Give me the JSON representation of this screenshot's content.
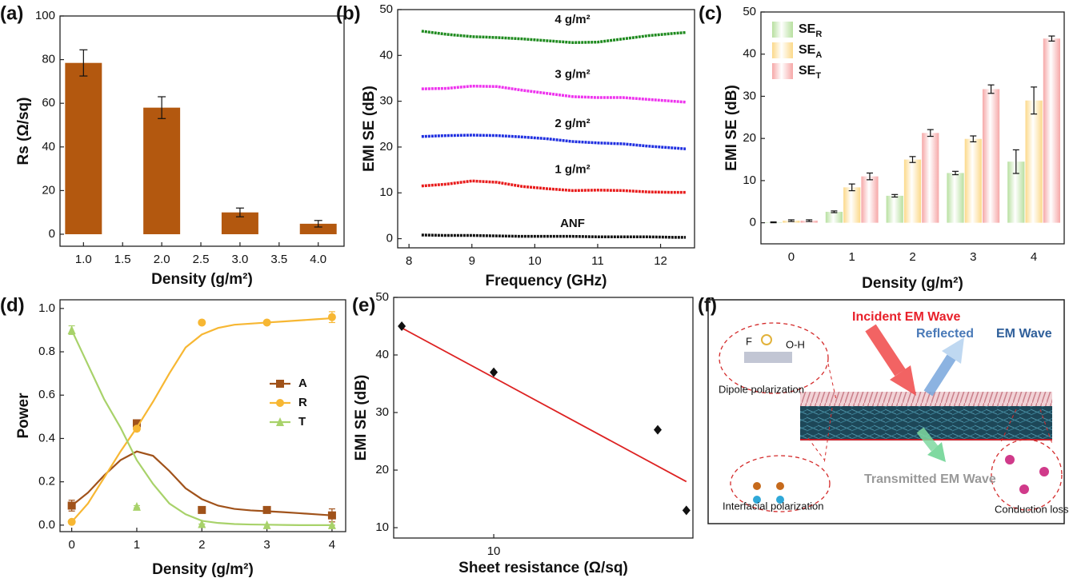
{
  "chart_data": [
    {
      "type": "bar",
      "label": "(a)",
      "ylabel": "Rs (Ω/sq)",
      "xlabel": "Density (g/m²)",
      "x": [
        1,
        2,
        3,
        4
      ],
      "values": [
        78.5,
        58,
        10,
        4.8
      ],
      "errors": [
        6,
        5,
        2,
        1.5
      ],
      "color": "#b3580f",
      "xlim": [
        0.7,
        4.33
      ],
      "xticks": [
        {
          "value": 1,
          "label": "1.0"
        },
        1.5,
        {
          "value": 2,
          "label": "2.0"
        },
        2.5,
        {
          "value": 3,
          "label": "3.0"
        },
        3.5,
        {
          "value": 4,
          "label": "4.0"
        }
      ],
      "ylim": [
        -5.5,
        100
      ],
      "yticks": [
        0,
        20,
        40,
        60,
        80,
        100
      ]
    },
    {
      "type": "line",
      "label": "(b)",
      "ylabel": "EMI SE (dB)",
      "xlabel": "Frequency (GHz)",
      "x": [
        8.2,
        8.6,
        9.0,
        9.4,
        9.8,
        10.2,
        10.6,
        11.0,
        11.4,
        11.8,
        12.2,
        12.4
      ],
      "series": [
        {
          "name": "4 g/m²",
          "color": "#1e8a1e",
          "values": [
            45.3,
            44.6,
            44.1,
            43.9,
            43.6,
            43.2,
            42.8,
            42.9,
            43.6,
            44.3,
            44.8,
            45.0
          ]
        },
        {
          "name": "3 g/m²",
          "color": "#ee33ee",
          "values": [
            32.7,
            32.8,
            33.3,
            33.2,
            32.4,
            31.7,
            31.0,
            30.8,
            30.8,
            30.4,
            30.0,
            29.8
          ]
        },
        {
          "name": "2 g/m²",
          "color": "#1f2fe0",
          "values": [
            22.3,
            22.5,
            22.6,
            22.5,
            22.2,
            21.8,
            21.2,
            20.9,
            20.7,
            20.2,
            19.8,
            19.6
          ]
        },
        {
          "name": "1 g/m²",
          "color": "#e81c1c",
          "values": [
            11.5,
            11.9,
            12.6,
            12.3,
            11.4,
            10.9,
            10.5,
            10.6,
            10.5,
            10.2,
            10.1,
            10.1
          ]
        },
        {
          "name": "ANF",
          "color": "#111111",
          "values": [
            0.8,
            0.7,
            0.7,
            0.6,
            0.5,
            0.5,
            0.5,
            0.4,
            0.4,
            0.4,
            0.3,
            0.3
          ]
        }
      ],
      "xlim": [
        7.82,
        12.54
      ],
      "xticks": [
        8,
        9,
        10,
        11,
        12
      ],
      "ylim": [
        -2,
        50
      ],
      "yticks": [
        0,
        10,
        20,
        30,
        40,
        50
      ]
    },
    {
      "type": "bar",
      "label": "(c)",
      "ylabel": "EMI SE (dB)",
      "xlabel": "Density (g/m²)",
      "categories": [
        "0",
        "1",
        "2",
        "3",
        "4"
      ],
      "series": [
        {
          "name": "SER",
          "color": "#b8e0a0",
          "values": [
            0.1,
            2.6,
            6.4,
            11.8,
            14.5
          ],
          "errors": [
            0.1,
            0.2,
            0.3,
            0.4,
            2.8
          ]
        },
        {
          "name": "SEA",
          "color": "#fcd98a",
          "values": [
            0.5,
            8.4,
            15.0,
            19.9,
            29.0
          ],
          "errors": [
            0.2,
            0.8,
            0.7,
            0.7,
            3.2
          ]
        },
        {
          "name": "SET",
          "color": "#f6a8a8",
          "values": [
            0.5,
            11.0,
            21.3,
            31.7,
            43.7
          ],
          "errors": [
            0.2,
            0.8,
            0.8,
            1.0,
            0.6
          ]
        }
      ],
      "ylim": [
        -5,
        50
      ],
      "yticks": [
        0,
        10,
        20,
        30,
        40,
        50
      ],
      "legend": "upper left"
    },
    {
      "type": "scatter",
      "label": "(d)",
      "ylabel": "Power",
      "xlabel": "Density (g/m²)",
      "x": [
        0,
        1,
        2,
        3,
        4
      ],
      "fit_x": [
        0,
        0.25,
        0.5,
        0.75,
        1,
        1.25,
        1.5,
        1.75,
        2,
        2.25,
        2.5,
        2.75,
        3,
        3.25,
        3.5,
        3.75,
        4
      ],
      "series": [
        {
          "name": "A",
          "color": "#a0521a",
          "marker": "square",
          "values": [
            0.09,
            0.47,
            0.07,
            0.07,
            0.045
          ],
          "errors": [
            0.025,
            0.015,
            0.01,
            0.01,
            0.03
          ],
          "fit": [
            0.09,
            0.15,
            0.23,
            0.3,
            0.34,
            0.32,
            0.25,
            0.17,
            0.12,
            0.09,
            0.075,
            0.068,
            0.064,
            0.06,
            0.055,
            0.05,
            0.045
          ]
        },
        {
          "name": "R",
          "color": "#f7b733",
          "marker": "circle",
          "values": [
            0.015,
            0.445,
            0.935,
            0.935,
            0.96
          ],
          "errors": [
            0,
            0.01,
            0.005,
            0.005,
            0.025
          ],
          "fit": [
            0.015,
            0.1,
            0.22,
            0.34,
            0.45,
            0.57,
            0.7,
            0.82,
            0.88,
            0.91,
            0.925,
            0.93,
            0.935,
            0.94,
            0.945,
            0.95,
            0.955
          ]
        },
        {
          "name": "T",
          "color": "#a8d26a",
          "marker": "triangle",
          "values": [
            0.9,
            0.085,
            0.005,
            0,
            0
          ],
          "errors": [
            0.02,
            0.005,
            0,
            0,
            0
          ],
          "fit": [
            0.9,
            0.74,
            0.58,
            0.45,
            0.3,
            0.19,
            0.1,
            0.05,
            0.02,
            0.01,
            0.005,
            0.003,
            0.002,
            0.001,
            0,
            0,
            0
          ]
        }
      ],
      "xlim": [
        -0.18,
        4.21
      ],
      "xticks": [
        0,
        1,
        2,
        3,
        4
      ],
      "ylim": [
        -0.03,
        1.04
      ],
      "yticks": [
        {
          "value": 0,
          "label": "0.0"
        },
        0.2,
        0.4,
        0.6,
        0.8,
        {
          "value": 1,
          "label": "1.0"
        }
      ],
      "legend": "upper right"
    },
    {
      "type": "scatter",
      "label": "(e)",
      "ylabel": "EMI SE (dB)",
      "xlabel": "Sheet resistance (Ω/sq)",
      "log_x": true,
      "x": [
        4.8,
        10,
        37,
        46.5
      ],
      "series": [
        {
          "color": "#111111",
          "marker": "diamond",
          "values": [
            45,
            37,
            27,
            13
          ]
        }
      ],
      "fit": {
        "x": [
          4.8,
          46.5
        ],
        "values": [
          44.7,
          18
        ],
        "color": "#dd2222"
      },
      "xlim": [
        4.5,
        49
      ],
      "xticks": [
        10
      ],
      "ylim": [
        8.2,
        50
      ],
      "yticks": [
        10,
        20,
        30,
        40,
        50
      ]
    }
  ],
  "diagram": {
    "label": "(f)",
    "incident": "Incident EM Wave",
    "reflected": "Reflected",
    "em_wave": "EM Wave",
    "f_atom": "F",
    "oh": "O-H",
    "dipole": "Dipole polarization",
    "transmitted": "Transmitted EM Wave",
    "interfacial": "Interfacial polarization",
    "conduction": "Conduction loss"
  }
}
